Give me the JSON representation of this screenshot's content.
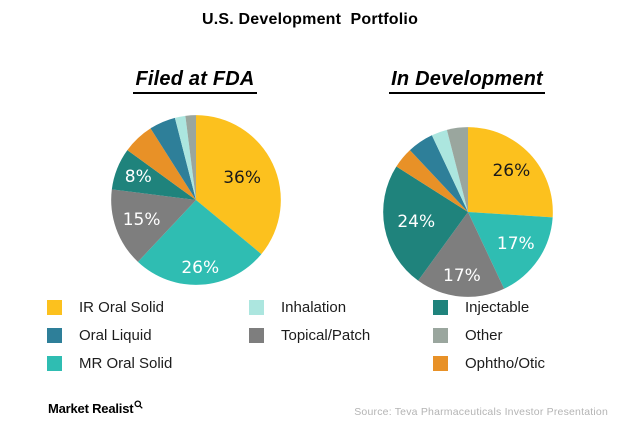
{
  "title": "U.S. Development  Portfolio",
  "chart_data": [
    {
      "type": "pie",
      "title": "Filed at FDA",
      "labels": [
        "IR Oral Solid",
        "MR Oral Solid",
        "Topical/Patch",
        "Injectable",
        "Ophtho/Otic",
        "Oral Liquid",
        "Inhalation",
        "Other"
      ],
      "values": [
        36,
        26,
        15,
        8,
        6,
        5,
        2,
        2
      ],
      "colors": [
        "#FCC11E",
        "#2FBDB2",
        "#7E7E7E",
        "#1F837C",
        "#E89127",
        "#2E7F99",
        "#ACE6DF",
        "#9AA69E"
      ],
      "value_labels": [
        "36%",
        "26%",
        "15%",
        "8%",
        "",
        "",
        "",
        ""
      ],
      "value_label_colors": [
        "#1a1a1a",
        "#ffffff",
        "#ffffff",
        "#ffffff",
        "",
        "",
        "",
        ""
      ],
      "label_radius": [
        0.6,
        0.8,
        0.68,
        0.73,
        0,
        0,
        0,
        0
      ],
      "start_angle": "top",
      "direction": "clockwise",
      "note": "unlabeled small slices estimated from arc angles"
    },
    {
      "type": "pie",
      "title": "In Development",
      "labels": [
        "IR Oral Solid",
        "MR Oral Solid",
        "Topical/Patch",
        "Injectable",
        "Ophtho/Otic",
        "Oral Liquid",
        "Inhalation",
        "Other"
      ],
      "values": [
        26,
        17,
        17,
        24,
        4,
        5,
        3,
        4
      ],
      "colors": [
        "#FCC11E",
        "#2FBDB2",
        "#7E7E7E",
        "#1F837C",
        "#E89127",
        "#2E7F99",
        "#ACE6DF",
        "#9AA69E"
      ],
      "value_labels": [
        "26%",
        "17%",
        "17%",
        "24%",
        "",
        "",
        "",
        ""
      ],
      "value_label_colors": [
        "#1a1a1a",
        "#ffffff",
        "#ffffff",
        "#ffffff",
        "",
        "",
        "",
        ""
      ],
      "label_radius": [
        0.7,
        0.68,
        0.76,
        0.62,
        0,
        0,
        0,
        0
      ],
      "start_angle": "top",
      "direction": "clockwise",
      "note": "unlabeled small slices estimated from arc angles"
    }
  ],
  "legend": {
    "columns": [
      [
        {
          "label": "IR Oral Solid",
          "color": "#FCC11E"
        },
        {
          "label": "Oral Liquid",
          "color": "#2E7F99"
        },
        {
          "label": "MR Oral Solid",
          "color": "#2FBDB2"
        }
      ],
      [
        {
          "label": "Inhalation",
          "color": "#ACE6DF"
        },
        {
          "label": "Topical/Patch",
          "color": "#7E7E7E"
        }
      ],
      [
        {
          "label": "Injectable",
          "color": "#1F837C"
        },
        {
          "label": "Other",
          "color": "#9AA69E"
        },
        {
          "label": "Ophtho/Otic",
          "color": "#E89127"
        }
      ]
    ]
  },
  "footer": {
    "brand": "Market Realist",
    "source": "Source: Teva Pharmaceuticals Investor Presentation"
  }
}
